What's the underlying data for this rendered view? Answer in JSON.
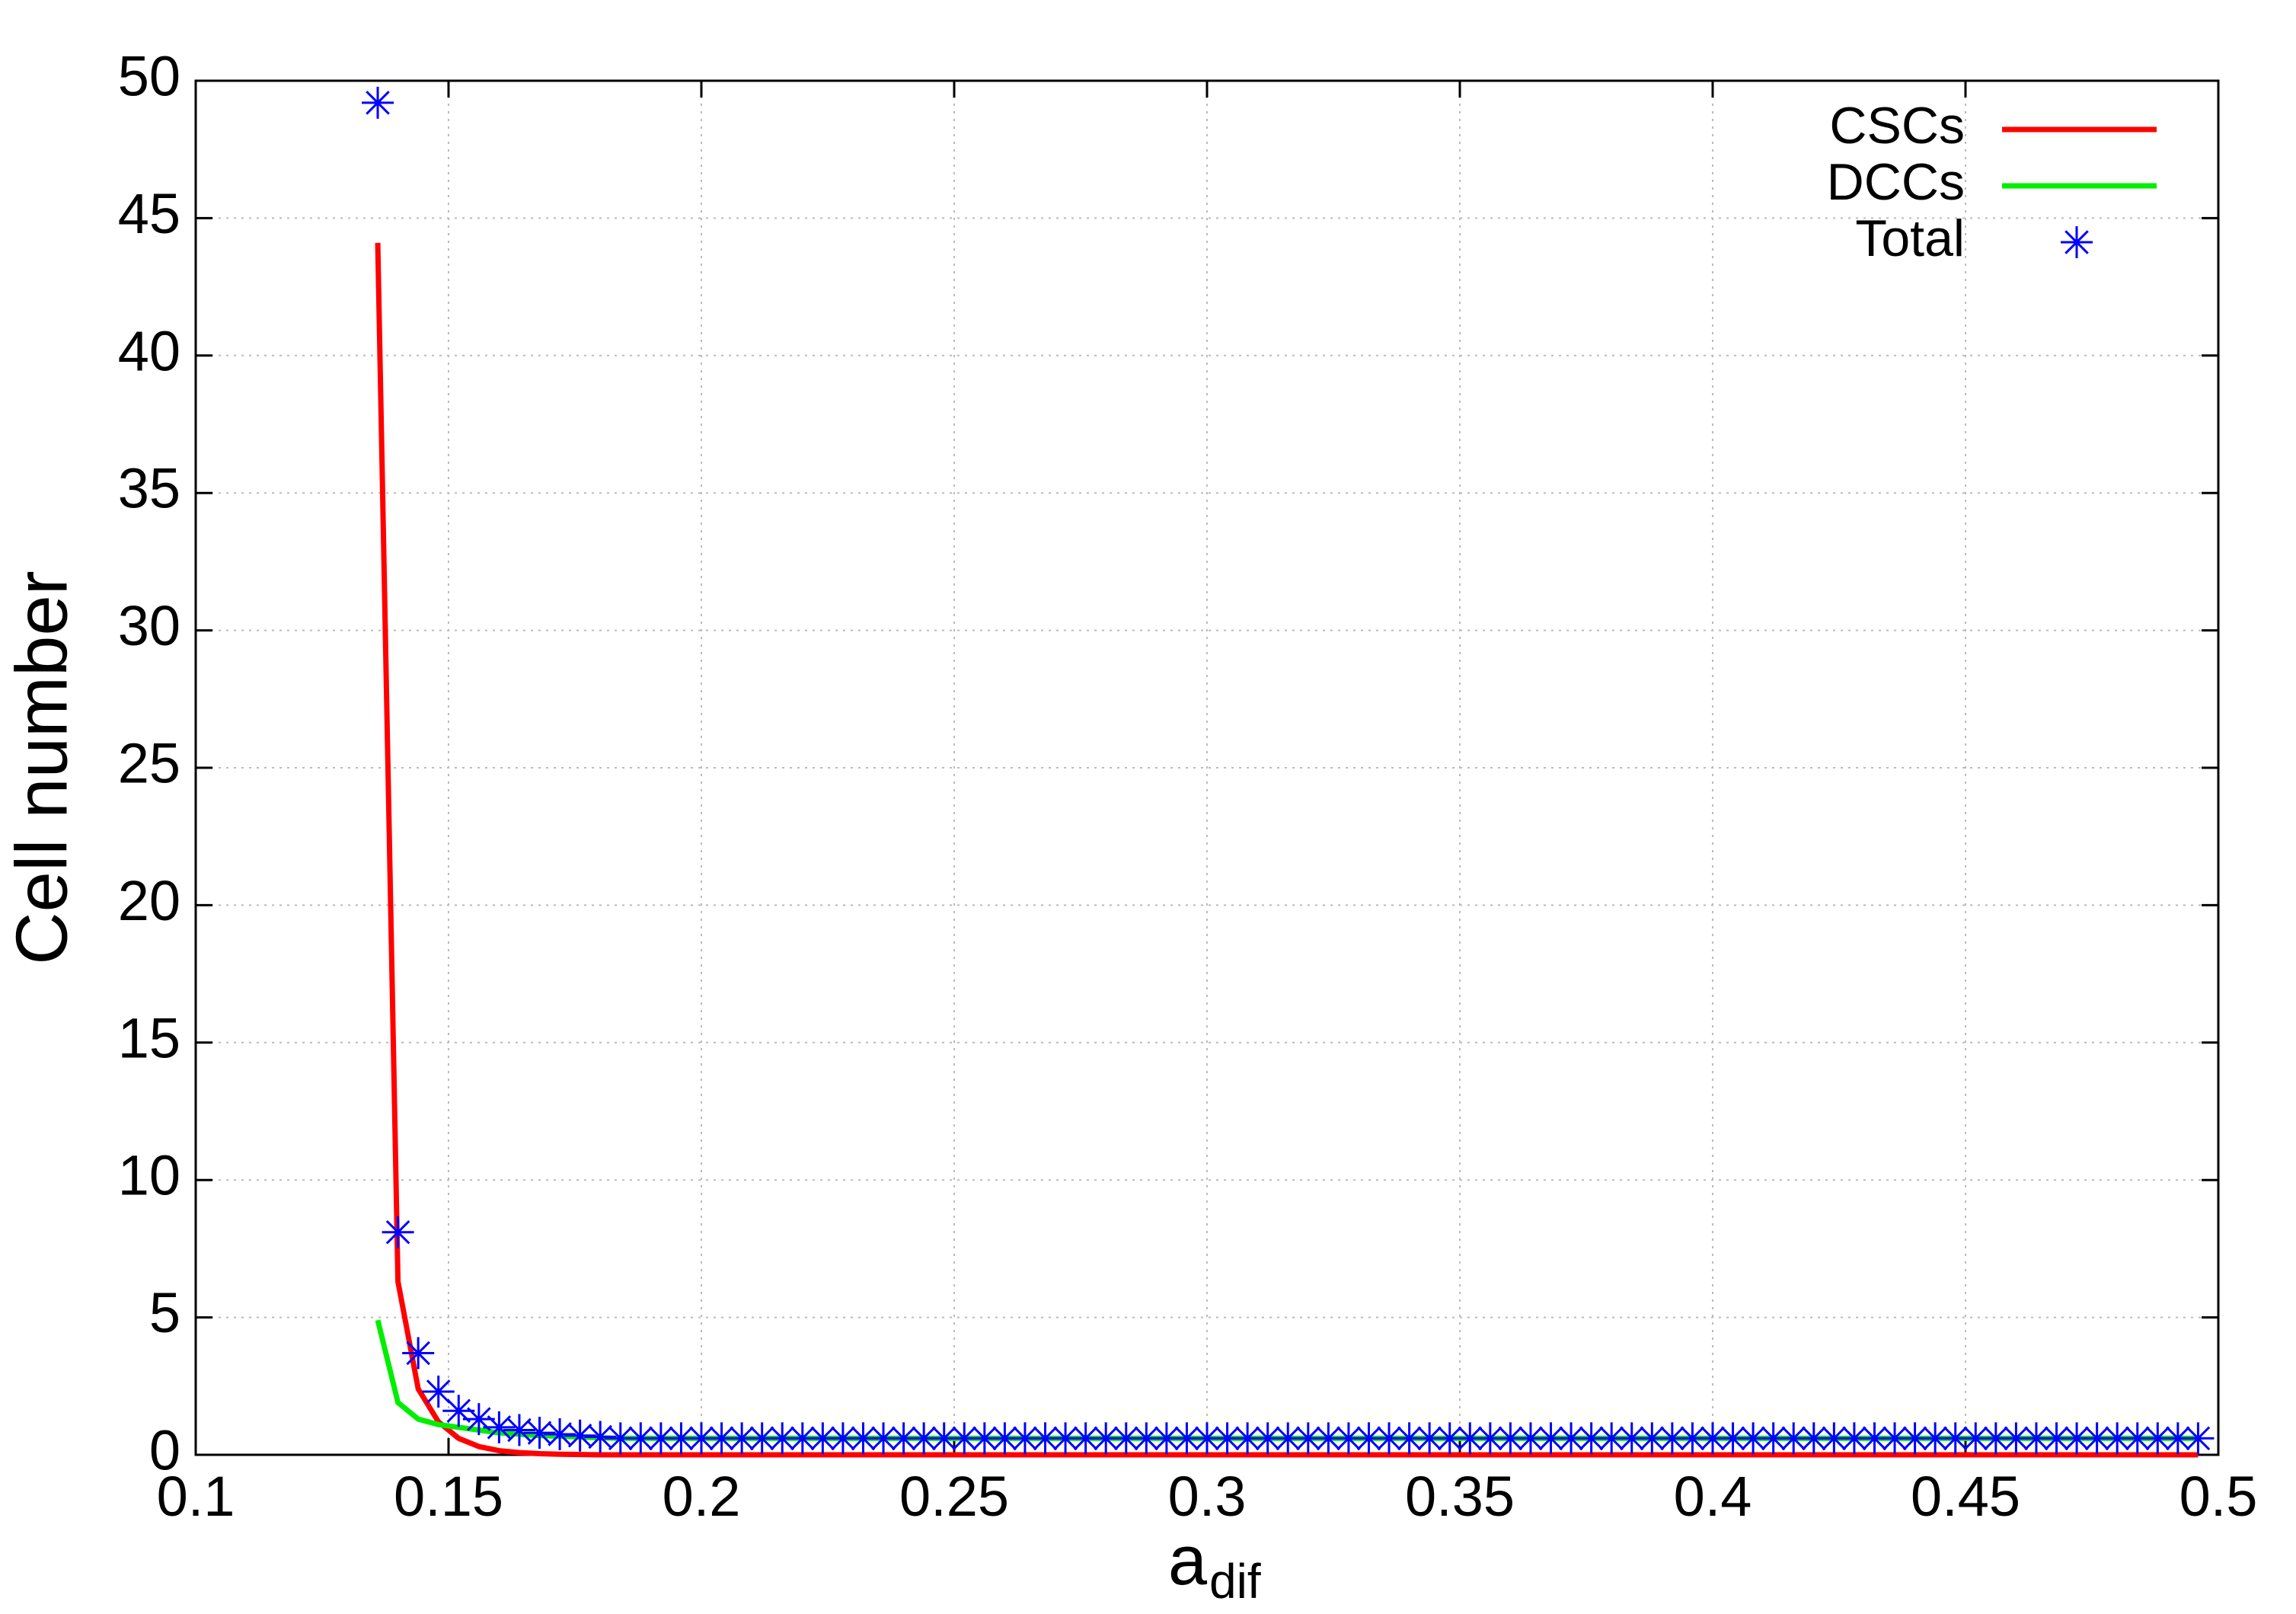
{
  "chart_data": {
    "type": "line",
    "xlabel": "a",
    "xlabel_sub": "dif",
    "ylabel": "Cell number",
    "x": [
      0.136,
      0.14,
      0.144,
      0.148,
      0.152,
      0.156,
      0.16,
      0.164,
      0.168,
      0.172,
      0.176,
      0.18,
      0.184,
      0.188,
      0.192,
      0.196,
      0.2,
      0.204,
      0.208,
      0.212,
      0.216,
      0.22,
      0.224,
      0.228,
      0.232,
      0.236,
      0.24,
      0.244,
      0.248,
      0.252,
      0.256,
      0.26,
      0.264,
      0.268,
      0.272,
      0.276,
      0.28,
      0.284,
      0.288,
      0.292,
      0.296,
      0.3,
      0.304,
      0.308,
      0.312,
      0.316,
      0.32,
      0.324,
      0.328,
      0.332,
      0.336,
      0.34,
      0.344,
      0.348,
      0.352,
      0.356,
      0.36,
      0.364,
      0.368,
      0.372,
      0.376,
      0.38,
      0.384,
      0.388,
      0.392,
      0.396,
      0.4,
      0.404,
      0.408,
      0.412,
      0.416,
      0.42,
      0.424,
      0.428,
      0.432,
      0.436,
      0.44,
      0.444,
      0.448,
      0.452,
      0.456,
      0.46,
      0.464,
      0.468,
      0.472,
      0.476,
      0.48,
      0.484,
      0.488,
      0.492,
      0.496
    ],
    "series": [
      {
        "name": "CSCs",
        "color": "#ff0000",
        "mode": "lines",
        "values": [
          44.1,
          6.3,
          2.4,
          1.2,
          0.6,
          0.3,
          0.15,
          0.08,
          0.04,
          0.02,
          0.01,
          0,
          0,
          0,
          0,
          0,
          0,
          0,
          0,
          0,
          0,
          0,
          0,
          0,
          0,
          0,
          0,
          0,
          0,
          0,
          0,
          0,
          0,
          0,
          0,
          0,
          0,
          0,
          0,
          0,
          0,
          0,
          0,
          0,
          0,
          0,
          0,
          0,
          0,
          0,
          0,
          0,
          0,
          0,
          0,
          0,
          0,
          0,
          0,
          0,
          0,
          0,
          0,
          0,
          0,
          0,
          0,
          0,
          0,
          0,
          0,
          0,
          0,
          0,
          0,
          0,
          0,
          0,
          0,
          0,
          0,
          0,
          0,
          0,
          0,
          0,
          0,
          0,
          0,
          0,
          0
        ]
      },
      {
        "name": "DCCs",
        "color": "#00ee00",
        "mode": "lines",
        "values": [
          4.9,
          1.9,
          1.3,
          1.1,
          1.0,
          0.9,
          0.8,
          0.75,
          0.7,
          0.68,
          0.65,
          0.62,
          0.6,
          0.6,
          0.6,
          0.6,
          0.6,
          0.6,
          0.6,
          0.6,
          0.6,
          0.6,
          0.6,
          0.6,
          0.6,
          0.6,
          0.6,
          0.6,
          0.6,
          0.6,
          0.6,
          0.6,
          0.6,
          0.6,
          0.6,
          0.6,
          0.6,
          0.6,
          0.6,
          0.6,
          0.6,
          0.6,
          0.6,
          0.6,
          0.6,
          0.6,
          0.6,
          0.6,
          0.6,
          0.6,
          0.6,
          0.6,
          0.6,
          0.6,
          0.6,
          0.6,
          0.6,
          0.6,
          0.6,
          0.6,
          0.6,
          0.6,
          0.6,
          0.6,
          0.6,
          0.6,
          0.6,
          0.6,
          0.6,
          0.6,
          0.6,
          0.6,
          0.6,
          0.6,
          0.6,
          0.6,
          0.6,
          0.6,
          0.6,
          0.6,
          0.6,
          0.6,
          0.6,
          0.6,
          0.6,
          0.6,
          0.6,
          0.6,
          0.6,
          0.6,
          0.6
        ]
      },
      {
        "name": "Total",
        "color": "#0000ff",
        "mode": "points",
        "values": [
          49.2,
          8.1,
          3.7,
          2.3,
          1.6,
          1.3,
          1.0,
          0.9,
          0.8,
          0.75,
          0.7,
          0.65,
          0.6,
          0.6,
          0.6,
          0.6,
          0.6,
          0.6,
          0.6,
          0.6,
          0.6,
          0.6,
          0.6,
          0.6,
          0.6,
          0.6,
          0.6,
          0.6,
          0.6,
          0.6,
          0.6,
          0.6,
          0.6,
          0.6,
          0.6,
          0.6,
          0.6,
          0.6,
          0.6,
          0.6,
          0.6,
          0.6,
          0.6,
          0.6,
          0.6,
          0.6,
          0.6,
          0.6,
          0.6,
          0.6,
          0.6,
          0.6,
          0.6,
          0.6,
          0.6,
          0.6,
          0.6,
          0.6,
          0.6,
          0.6,
          0.6,
          0.6,
          0.6,
          0.6,
          0.6,
          0.6,
          0.6,
          0.6,
          0.6,
          0.6,
          0.6,
          0.6,
          0.6,
          0.6,
          0.6,
          0.6,
          0.6,
          0.6,
          0.6,
          0.6,
          0.6,
          0.6,
          0.6,
          0.6,
          0.6,
          0.6,
          0.6,
          0.6,
          0.6,
          0.6,
          0.6
        ]
      }
    ],
    "xlim": [
      0.1,
      0.5
    ],
    "xticks": [
      0.1,
      0.15,
      0.2,
      0.25,
      0.3,
      0.35,
      0.4,
      0.45,
      0.5
    ],
    "ylim": [
      0,
      50
    ],
    "yticks": [
      0,
      5,
      10,
      15,
      20,
      25,
      30,
      35,
      40,
      45,
      50
    ],
    "grid": true,
    "legend": "top-right"
  }
}
